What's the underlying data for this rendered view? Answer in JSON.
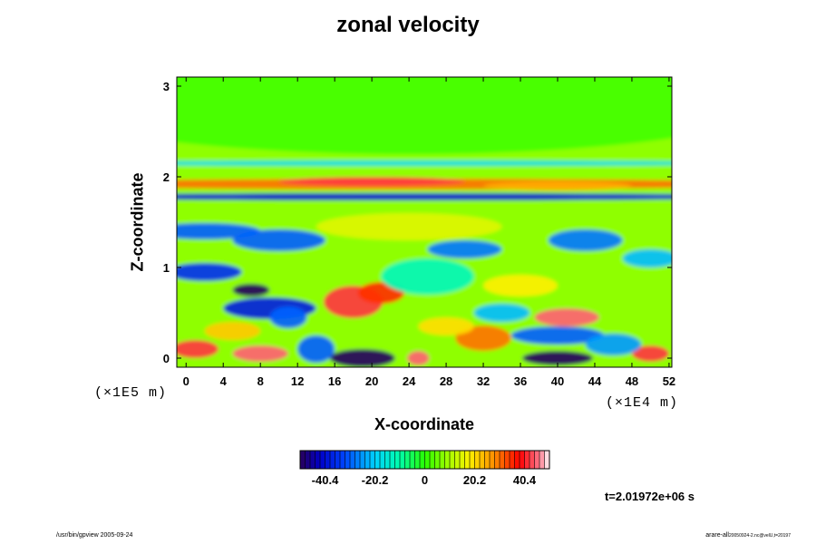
{
  "chart_data": {
    "type": "heatmap",
    "title": "zonal velocity",
    "xlabel": "X-coordinate",
    "ylabel": "Z-coordinate",
    "x_unit": "(×1E4 m)",
    "z_unit": "(×1E5 m)",
    "x_ticks": [
      0,
      4,
      8,
      12,
      16,
      20,
      24,
      28,
      32,
      36,
      40,
      44,
      48,
      52
    ],
    "y_ticks": [
      0,
      1,
      2,
      3
    ],
    "xlim": [
      -1,
      52.3
    ],
    "ylim": [
      -0.1,
      3.1
    ],
    "colorbar": {
      "ticks": [
        "-40.4",
        "-20.2",
        "0",
        "20.2",
        "40.4"
      ],
      "tick_values": [
        -40.4,
        -20.2,
        0,
        20.2,
        40.4
      ],
      "range": [
        -50.5,
        50.5
      ]
    },
    "time_label": "t=2.01972e+06 s",
    "features": [
      {
        "x": 24,
        "z": 2.85,
        "value": 2,
        "rx": 40,
        "rz": 0.6
      },
      {
        "x": 24,
        "z": 1.92,
        "value": 30,
        "rx": 40,
        "rz": 0.06
      },
      {
        "x": 20,
        "z": 1.95,
        "value": 42,
        "rx": 10,
        "rz": 0.05
      },
      {
        "x": 40,
        "z": 1.9,
        "value": 25,
        "rx": 8,
        "rz": 0.05
      },
      {
        "x": 24,
        "z": 1.78,
        "value": -40,
        "rx": 40,
        "rz": 0.04
      },
      {
        "x": 24,
        "z": 2.15,
        "value": -18,
        "rx": 40,
        "rz": 0.03
      },
      {
        "x": 2,
        "z": 1.4,
        "value": -30,
        "rx": 6,
        "rz": 0.09
      },
      {
        "x": 10,
        "z": 1.3,
        "value": -30,
        "rx": 5,
        "rz": 0.12
      },
      {
        "x": 30,
        "z": 1.2,
        "value": -28,
        "rx": 4,
        "rz": 0.1
      },
      {
        "x": 43,
        "z": 1.3,
        "value": -28,
        "rx": 4,
        "rz": 0.12
      },
      {
        "x": 50,
        "z": 1.1,
        "value": -22,
        "rx": 3,
        "rz": 0.1
      },
      {
        "x": 18,
        "z": 0.62,
        "value": 42,
        "rx": 3.2,
        "rz": 0.18
      },
      {
        "x": 21,
        "z": 0.72,
        "value": 35,
        "rx": 2.5,
        "rz": 0.12
      },
      {
        "x": 7,
        "z": 0.75,
        "value": -50,
        "rx": 2,
        "rz": 0.07
      },
      {
        "x": 9,
        "z": 0.55,
        "value": -38,
        "rx": 5,
        "rz": 0.12
      },
      {
        "x": 2,
        "z": 0.95,
        "value": -35,
        "rx": 4,
        "rz": 0.1
      },
      {
        "x": 11,
        "z": 0.45,
        "value": -30,
        "rx": 2,
        "rz": 0.12
      },
      {
        "x": 41,
        "z": 0.45,
        "value": 45,
        "rx": 3.5,
        "rz": 0.1
      },
      {
        "x": 40,
        "z": 0.25,
        "value": -30,
        "rx": 5,
        "rz": 0.1
      },
      {
        "x": 32,
        "z": 0.22,
        "value": 30,
        "rx": 3,
        "rz": 0.14
      },
      {
        "x": 28,
        "z": 0.35,
        "value": 20,
        "rx": 3,
        "rz": 0.1
      },
      {
        "x": 34,
        "z": 0.5,
        "value": -22,
        "rx": 3,
        "rz": 0.1
      },
      {
        "x": 8,
        "z": 0.05,
        "value": 45,
        "rx": 3,
        "rz": 0.09
      },
      {
        "x": 1,
        "z": 0.1,
        "value": 42,
        "rx": 2.5,
        "rz": 0.1
      },
      {
        "x": 19,
        "z": 0.0,
        "value": -50,
        "rx": 3.5,
        "rz": 0.1
      },
      {
        "x": 25,
        "z": 0.0,
        "value": 45,
        "rx": 1.2,
        "rz": 0.08
      },
      {
        "x": 40,
        "z": 0.0,
        "value": -50,
        "rx": 3.8,
        "rz": 0.08
      },
      {
        "x": 50,
        "z": 0.05,
        "value": 42,
        "rx": 2,
        "rz": 0.09
      },
      {
        "x": 14,
        "z": 0.1,
        "value": -30,
        "rx": 2,
        "rz": 0.15
      },
      {
        "x": 46,
        "z": 0.15,
        "value": -25,
        "rx": 3,
        "rz": 0.12
      },
      {
        "x": 24,
        "z": 1.45,
        "value": 15,
        "rx": 10,
        "rz": 0.15
      },
      {
        "x": 36,
        "z": 0.8,
        "value": 18,
        "rx": 4,
        "rz": 0.12
      },
      {
        "x": 5,
        "z": 0.3,
        "value": 22,
        "rx": 3,
        "rz": 0.1
      },
      {
        "x": 26,
        "z": 0.9,
        "value": -12,
        "rx": 5,
        "rz": 0.2
      }
    ]
  },
  "footer": {
    "left": "/usr/bin/gpview 2005-09-24",
    "right_main": "arare-all",
    "right_small": "20050924-2.nc@velU,t=20197"
  }
}
